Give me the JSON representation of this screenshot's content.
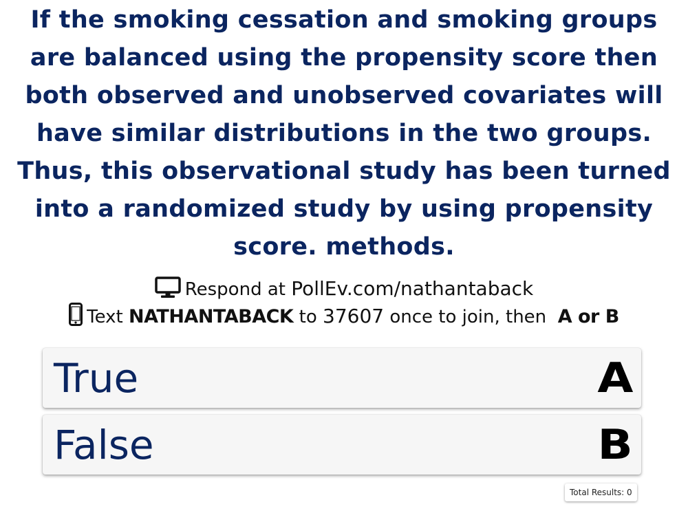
{
  "question": {
    "text": "If the smoking cessation and smoking groups are balanced using the propensity score then both observed and unobserved covariates will have similar distributions in the two groups. Thus, this observational study has been turned into a randomized study by using propensity score. methods."
  },
  "instructions": {
    "respond_prefix": "Respond at",
    "respond_url": "PollEv.com/nathantaback",
    "text_prefix": "Text",
    "keyword": "NATHANTABACK",
    "text_to": "to",
    "short_code": "37607",
    "text_suffix": "once to join, then",
    "choices_hint": "A or B",
    "web_icon": "monitor-icon",
    "sms_icon": "phone-icon"
  },
  "options": [
    {
      "label": "True",
      "letter": "A"
    },
    {
      "label": "False",
      "letter": "B"
    }
  ],
  "results": {
    "total_label": "Total Results: 0"
  },
  "colors": {
    "question": "#0b2560",
    "option_text": "#0b2560",
    "option_bg": "#f6f6f6"
  }
}
